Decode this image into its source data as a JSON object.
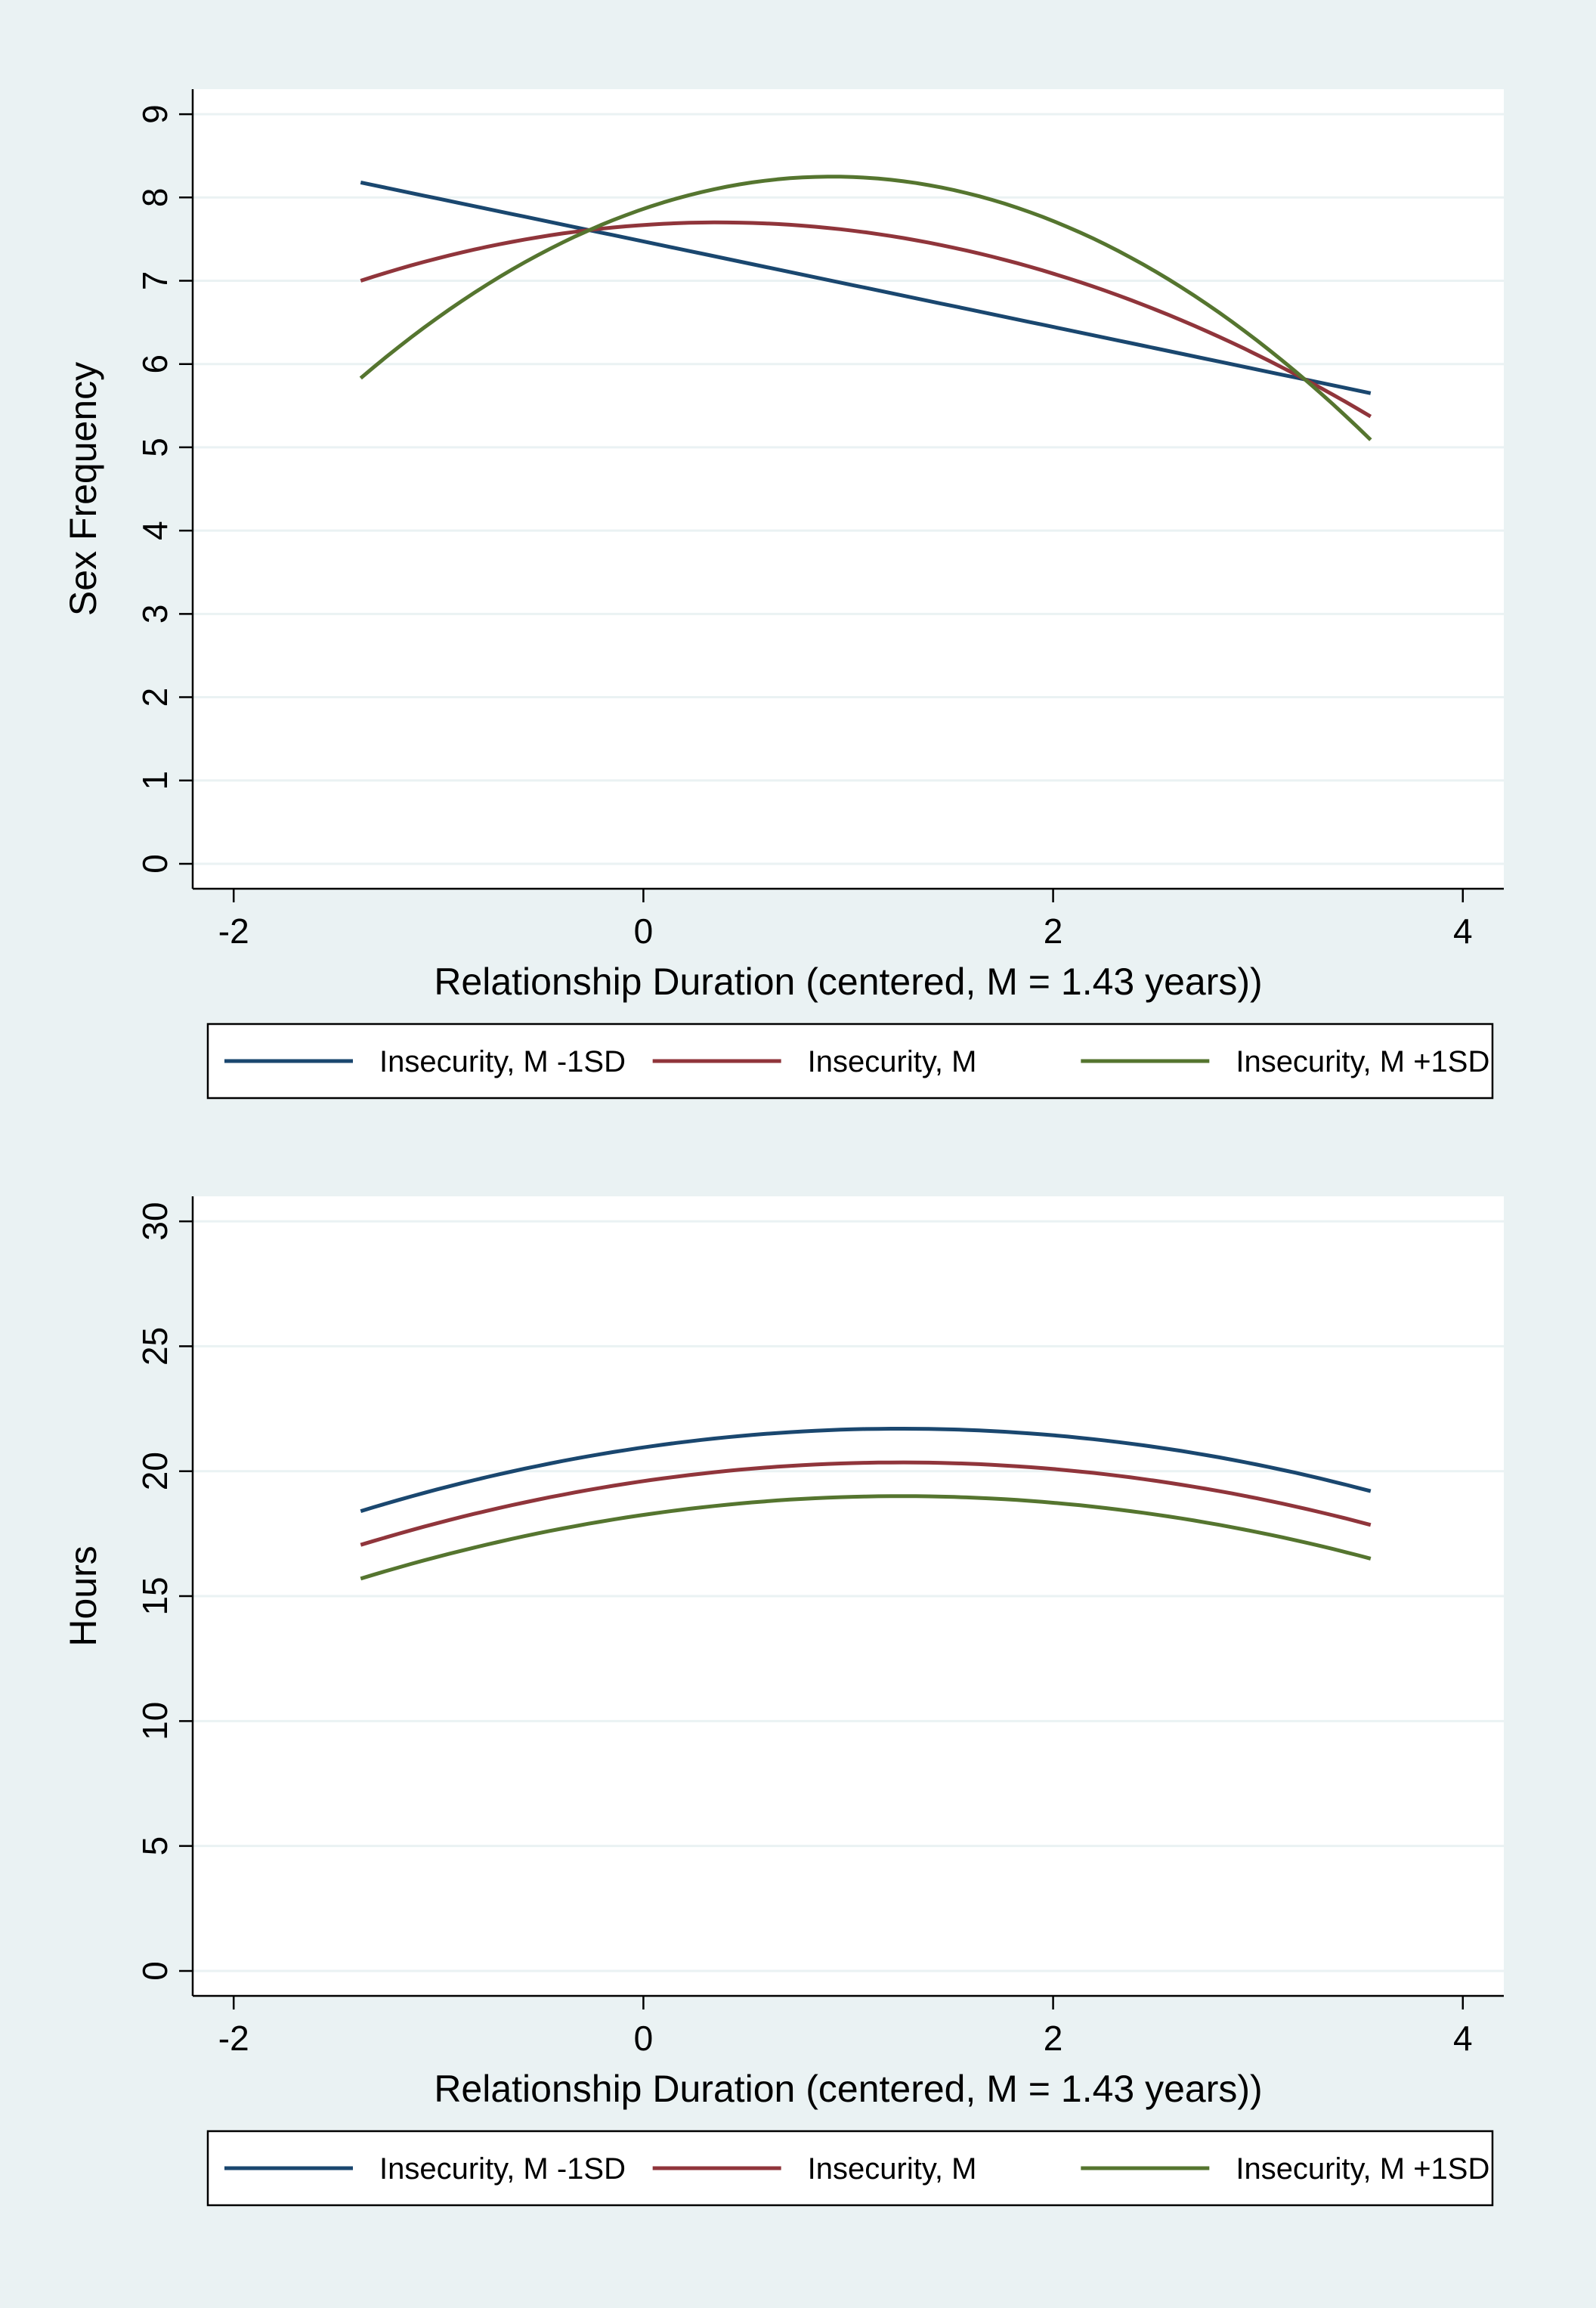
{
  "colors": {
    "outer_background": "#eaf2f3",
    "plot_background": "#ffffff",
    "grid": "#eaf2f3",
    "axis": "#000000",
    "series": [
      "#1a476f",
      "#90353b",
      "#55752f"
    ]
  },
  "chart_data": [
    {
      "type": "line",
      "title": "",
      "xlabel": "Relationship Duration (centered, M = 1.43 years))",
      "ylabel": "Sex Frequency",
      "xlim": [
        -2.2,
        4.2
      ],
      "ylim": [
        -0.3,
        9.3
      ],
      "x_ticks": [
        -2,
        0,
        2,
        4
      ],
      "x_tick_labels": [
        "-2",
        "0",
        "2",
        "4"
      ],
      "y_ticks": [
        0,
        1,
        2,
        3,
        4,
        5,
        6,
        7,
        8,
        9
      ],
      "y_tick_labels": [
        "0",
        "1",
        "2",
        "3",
        "4",
        "5",
        "6",
        "7",
        "8",
        "9"
      ],
      "grid": true,
      "legend_position": "bottom",
      "series": [
        {
          "name": "Insecurity, M -1SD",
          "x": [
            -1.38,
            3.55
          ],
          "values": [
            8.18,
            5.65
          ]
        },
        {
          "name": "Insecurity, M",
          "x": [
            -1.38,
            0.35,
            3.55
          ],
          "values": [
            7.0,
            7.7,
            5.37
          ]
        },
        {
          "name": "Insecurity, M +1SD",
          "x": [
            -1.38,
            0.92,
            3.55
          ],
          "values": [
            5.83,
            8.25,
            5.09
          ]
        }
      ]
    },
    {
      "type": "line",
      "title": "",
      "xlabel": "Relationship Duration (centered, M = 1.43 years))",
      "ylabel": "Hours",
      "xlim": [
        -2.2,
        4.2
      ],
      "ylim": [
        -1,
        31
      ],
      "x_ticks": [
        -2,
        0,
        2,
        4
      ],
      "x_tick_labels": [
        "-2",
        "0",
        "2",
        "4"
      ],
      "y_ticks": [
        0,
        5,
        10,
        15,
        20,
        25,
        30
      ],
      "y_tick_labels": [
        "0",
        "5",
        "10",
        "15",
        "20",
        "25",
        "30"
      ],
      "grid": true,
      "legend_position": "bottom",
      "series": [
        {
          "name": "Insecurity, M -1SD",
          "x": [
            -1.38,
            1.25,
            3.55
          ],
          "values": [
            18.4,
            21.7,
            19.2
          ]
        },
        {
          "name": "Insecurity, M",
          "x": [
            -1.38,
            1.25,
            3.55
          ],
          "values": [
            17.05,
            20.35,
            17.85
          ]
        },
        {
          "name": "Insecurity, M +1SD",
          "x": [
            -1.38,
            1.25,
            3.55
          ],
          "values": [
            15.7,
            19.0,
            16.5
          ]
        }
      ]
    }
  ]
}
